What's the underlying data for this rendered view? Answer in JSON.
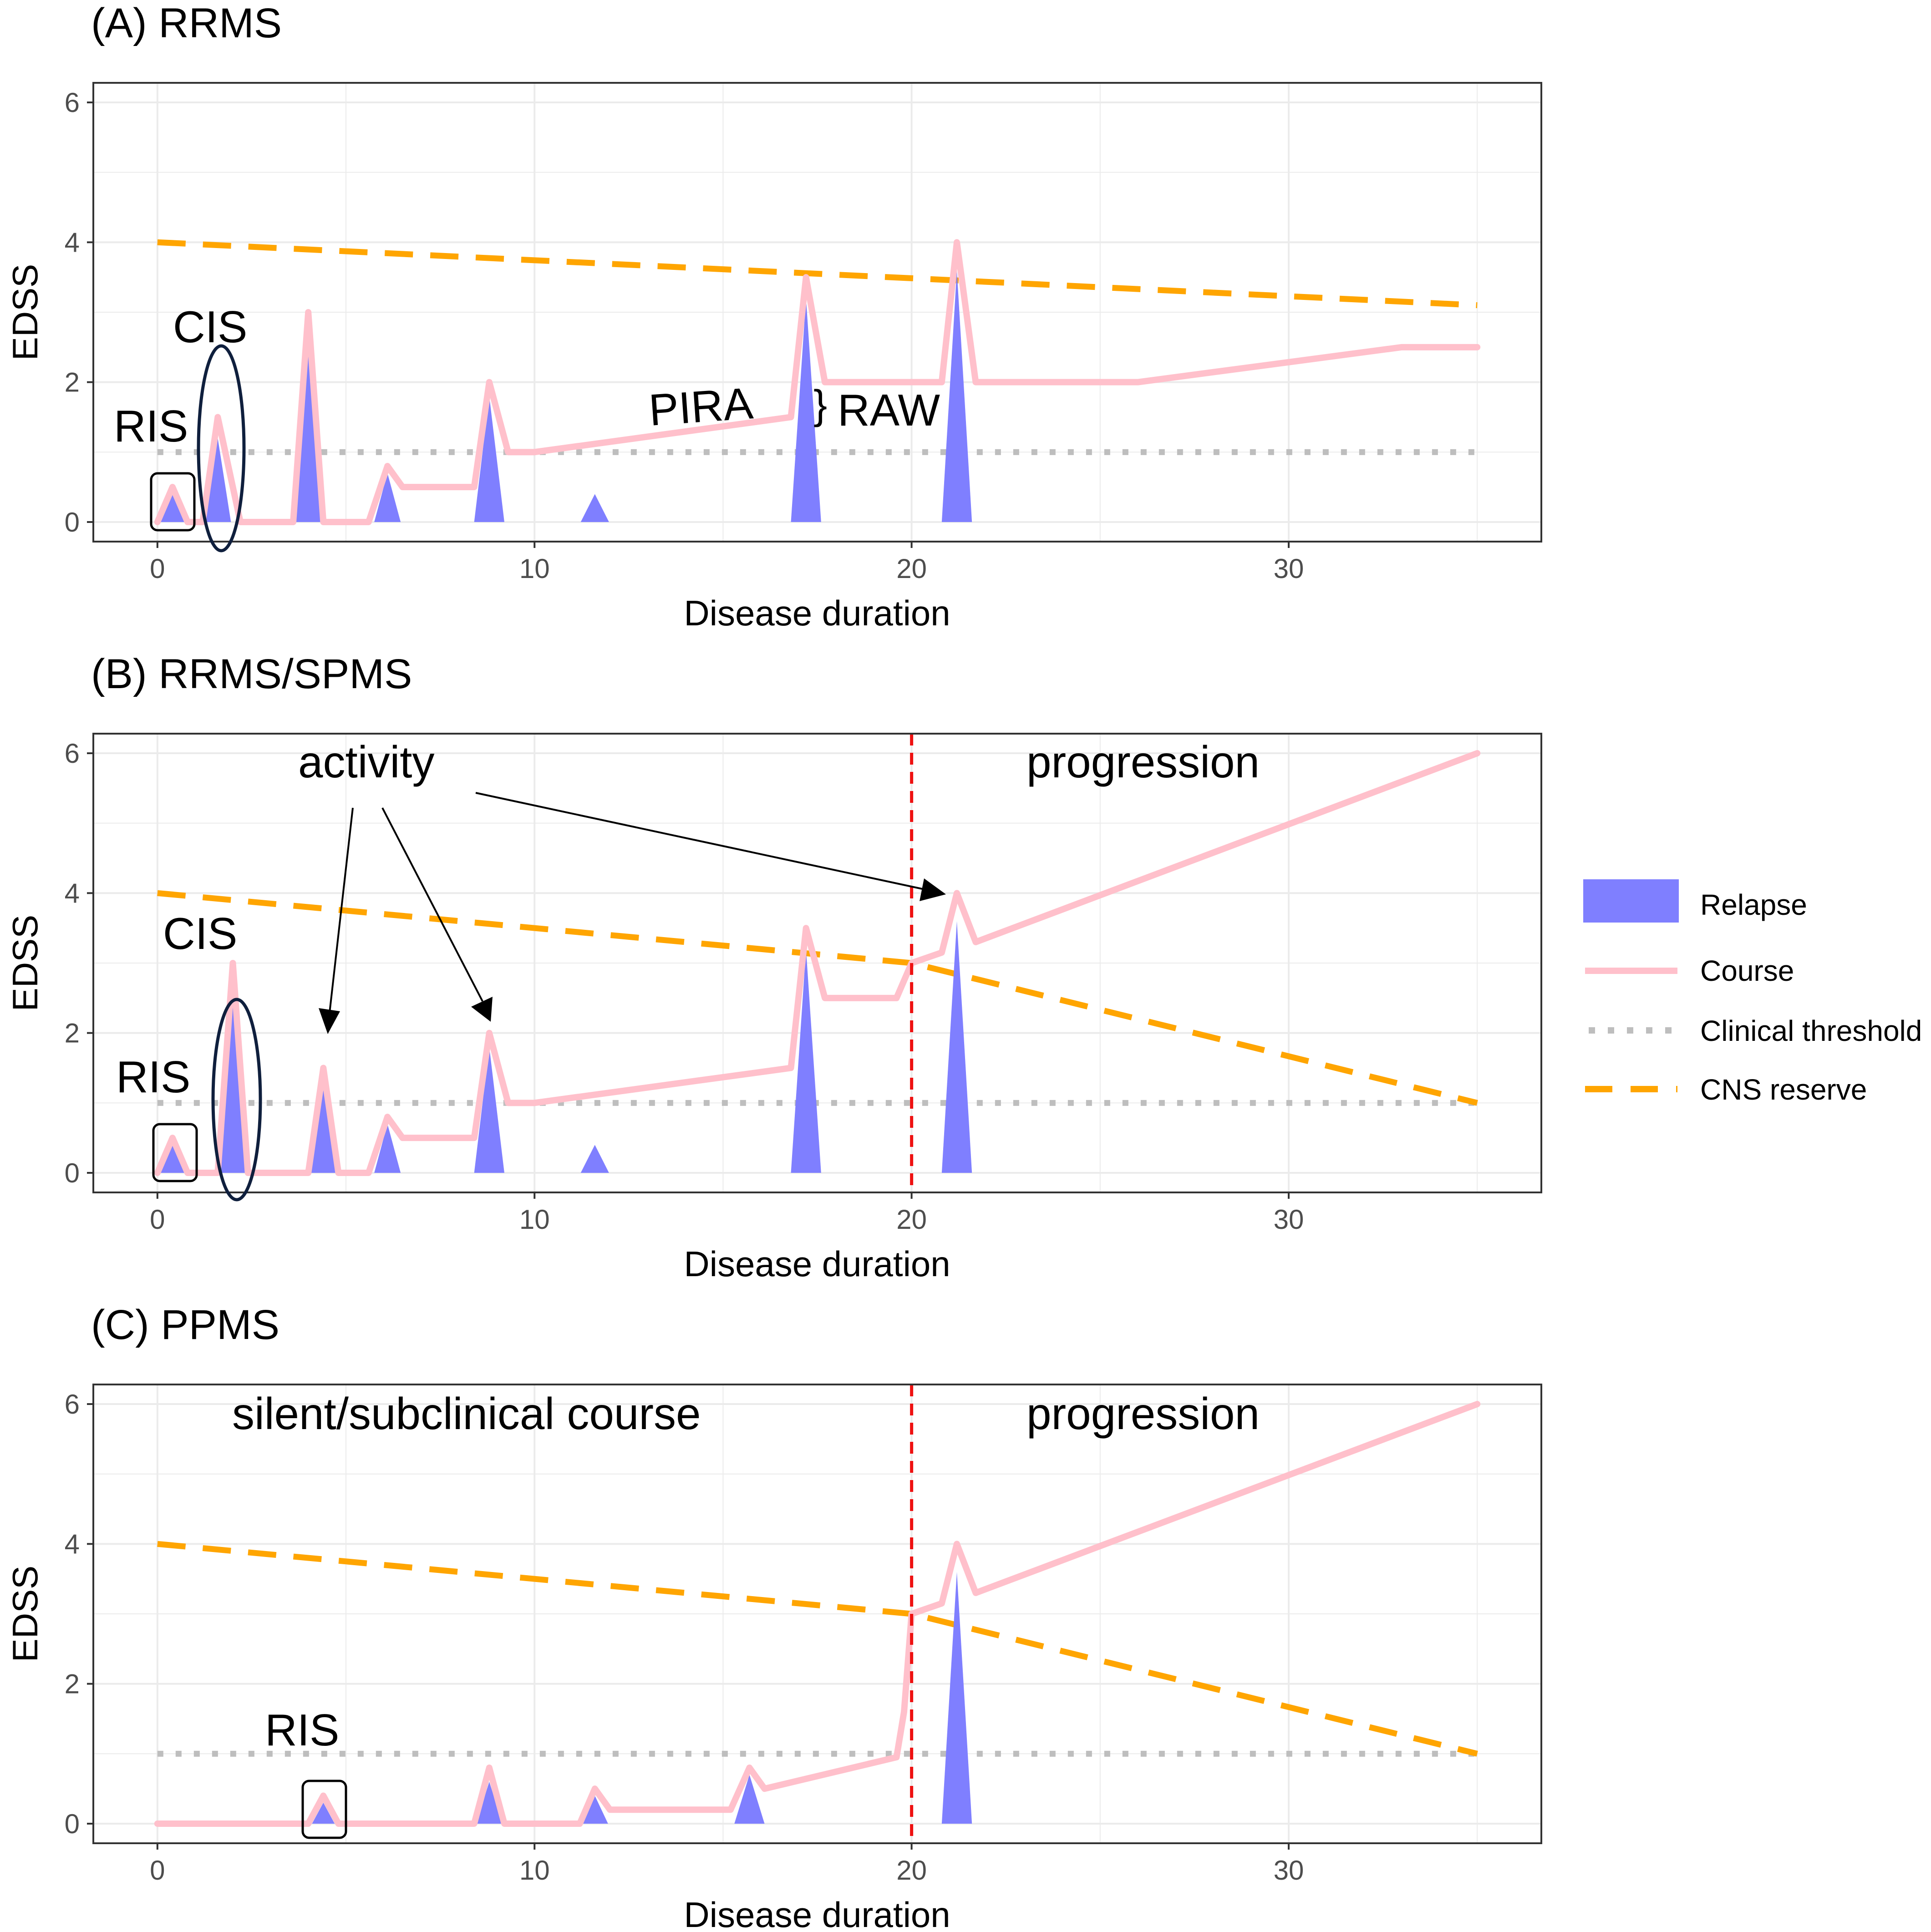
{
  "chart_data": [
    {
      "type": "line",
      "title": "(A) RRMS",
      "xlabel": "Disease duration",
      "ylabel": "EDSS",
      "xlim": [
        -1.7,
        36.7
      ],
      "ylim": [
        -0.28,
        6.28
      ],
      "xticks": [
        0,
        10,
        20,
        30
      ],
      "yticks": [
        0,
        2,
        4,
        6
      ],
      "relapses": [
        {
          "x": 0.4,
          "width": 0.65,
          "height": 0.4
        },
        {
          "x": 1.6,
          "width": 0.7,
          "height": 1.2
        },
        {
          "x": 4.0,
          "width": 0.7,
          "height": 2.7
        },
        {
          "x": 6.1,
          "width": 0.7,
          "height": 0.7
        },
        {
          "x": 8.8,
          "width": 0.8,
          "height": 1.8
        },
        {
          "x": 11.6,
          "width": 0.75,
          "height": 0.4
        },
        {
          "x": 17.2,
          "width": 0.8,
          "height": 3.2
        },
        {
          "x": 21.2,
          "width": 0.8,
          "height": 3.6
        }
      ],
      "course": [
        [
          0,
          0
        ],
        [
          0.4,
          0.5
        ],
        [
          0.8,
          0
        ],
        [
          1.2,
          0
        ],
        [
          1.6,
          1.5
        ],
        [
          2.2,
          0
        ],
        [
          3.6,
          0
        ],
        [
          4.0,
          3.0
        ],
        [
          4.4,
          0
        ],
        [
          5.6,
          0
        ],
        [
          6.1,
          0.8
        ],
        [
          6.5,
          0.5
        ],
        [
          8.4,
          0.5
        ],
        [
          8.8,
          2.0
        ],
        [
          9.3,
          1.0
        ],
        [
          10.0,
          1.0
        ],
        [
          16.8,
          1.5
        ],
        [
          17.2,
          3.5
        ],
        [
          17.7,
          2.0
        ],
        [
          20.8,
          2.0
        ],
        [
          21.2,
          4.0
        ],
        [
          21.7,
          2.0
        ],
        [
          26.0,
          2.0
        ],
        [
          33.0,
          2.5
        ],
        [
          35.0,
          2.5
        ]
      ],
      "clinical_threshold": [
        [
          0,
          1
        ],
        [
          35,
          1
        ]
      ],
      "cns_reserve": [
        [
          0,
          4.0
        ],
        [
          35,
          3.1
        ]
      ],
      "vline": null,
      "annotations": {
        "ris": "RIS",
        "cis": "CIS",
        "pira": "PIRA",
        "raw": "RAW"
      }
    },
    {
      "type": "line",
      "title": "(B) RRMS/SPMS",
      "xlabel": "Disease duration",
      "ylabel": "EDSS",
      "xlim": [
        -1.7,
        36.7
      ],
      "ylim": [
        -0.28,
        6.28
      ],
      "xticks": [
        0,
        10,
        20,
        30
      ],
      "yticks": [
        0,
        2,
        4,
        6
      ],
      "relapses": [
        {
          "x": 0.4,
          "width": 0.65,
          "height": 0.4
        },
        {
          "x": 2.0,
          "width": 0.7,
          "height": 2.7
        },
        {
          "x": 4.4,
          "width": 0.7,
          "height": 1.2
        },
        {
          "x": 6.1,
          "width": 0.7,
          "height": 0.7
        },
        {
          "x": 8.8,
          "width": 0.8,
          "height": 1.8
        },
        {
          "x": 11.6,
          "width": 0.75,
          "height": 0.4
        },
        {
          "x": 17.2,
          "width": 0.8,
          "height": 3.2
        },
        {
          "x": 21.2,
          "width": 0.8,
          "height": 3.6
        }
      ],
      "course": [
        [
          0,
          0
        ],
        [
          0.4,
          0.5
        ],
        [
          0.8,
          0
        ],
        [
          1.6,
          0
        ],
        [
          2.0,
          3.0
        ],
        [
          2.4,
          0
        ],
        [
          4.0,
          0
        ],
        [
          4.4,
          1.5
        ],
        [
          4.8,
          0
        ],
        [
          5.6,
          0
        ],
        [
          6.1,
          0.8
        ],
        [
          6.5,
          0.5
        ],
        [
          8.4,
          0.5
        ],
        [
          8.8,
          2.0
        ],
        [
          9.3,
          1.0
        ],
        [
          10.0,
          1.0
        ],
        [
          16.8,
          1.5
        ],
        [
          17.2,
          3.5
        ],
        [
          17.7,
          2.5
        ],
        [
          19.6,
          2.5
        ],
        [
          20.0,
          3.0
        ],
        [
          20.8,
          3.15
        ],
        [
          21.2,
          4.0
        ],
        [
          21.7,
          3.3
        ],
        [
          35.0,
          6.0
        ]
      ],
      "clinical_threshold": [
        [
          0,
          1
        ],
        [
          35,
          1
        ]
      ],
      "cns_reserve": [
        [
          0,
          4.0
        ],
        [
          20,
          3.0
        ],
        [
          35,
          1.0
        ]
      ],
      "vline": 20,
      "annotations": {
        "ris": "RIS",
        "cis": "CIS",
        "activity": "activity",
        "progression": "progression"
      }
    },
    {
      "type": "line",
      "title": "(C) PPMS",
      "xlabel": "Disease duration",
      "ylabel": "EDSS",
      "xlim": [
        -1.7,
        36.7
      ],
      "ylim": [
        -0.28,
        6.28
      ],
      "xticks": [
        0,
        10,
        20,
        30
      ],
      "yticks": [
        0,
        2,
        4,
        6
      ],
      "relapses": [
        {
          "x": 4.4,
          "width": 0.6,
          "height": 0.3
        },
        {
          "x": 8.8,
          "width": 0.7,
          "height": 0.6
        },
        {
          "x": 11.6,
          "width": 0.7,
          "height": 0.4
        },
        {
          "x": 15.7,
          "width": 0.8,
          "height": 0.7
        },
        {
          "x": 21.2,
          "width": 0.8,
          "height": 3.6
        }
      ],
      "course": [
        [
          0,
          0
        ],
        [
          4.0,
          0
        ],
        [
          4.4,
          0.4
        ],
        [
          4.8,
          0
        ],
        [
          8.4,
          0
        ],
        [
          8.8,
          0.8
        ],
        [
          9.2,
          0
        ],
        [
          11.2,
          0
        ],
        [
          11.6,
          0.5
        ],
        [
          12.0,
          0.2
        ],
        [
          15.2,
          0.2
        ],
        [
          15.7,
          0.8
        ],
        [
          16.1,
          0.5
        ],
        [
          19.6,
          0.95
        ],
        [
          19.8,
          1.6
        ],
        [
          20.0,
          3.0
        ],
        [
          20.8,
          3.15
        ],
        [
          21.2,
          4.0
        ],
        [
          21.7,
          3.3
        ],
        [
          35.0,
          6.0
        ]
      ],
      "clinical_threshold": [
        [
          0,
          1
        ],
        [
          35,
          1
        ]
      ],
      "cns_reserve": [
        [
          0,
          4.0
        ],
        [
          20,
          3.0
        ],
        [
          35,
          1.0
        ]
      ],
      "vline": 20,
      "annotations": {
        "ris": "RIS",
        "silent": "silent/subclinical course",
        "progression": "progression"
      }
    }
  ],
  "legend": {
    "position": "right",
    "items": [
      {
        "key": "relapse",
        "label": "Relapse",
        "color": "#7f7fff"
      },
      {
        "key": "course",
        "label": "Course",
        "color": "#ffc0cb"
      },
      {
        "key": "threshold",
        "label": "Clinical threshold",
        "color": "#bebebe"
      },
      {
        "key": "reserve",
        "label": "CNS reserve",
        "color": "#ffa500"
      }
    ]
  },
  "colors": {
    "relapse": "#7f7fff",
    "course": "#ffc0cb",
    "threshold": "#bebebe",
    "reserve": "#ffa500",
    "vline": "#ee1111",
    "ellipse": "#0f1f3d",
    "axis": "#333333",
    "grid": "#ebebeb",
    "tick_label": "#4d4d4d"
  }
}
